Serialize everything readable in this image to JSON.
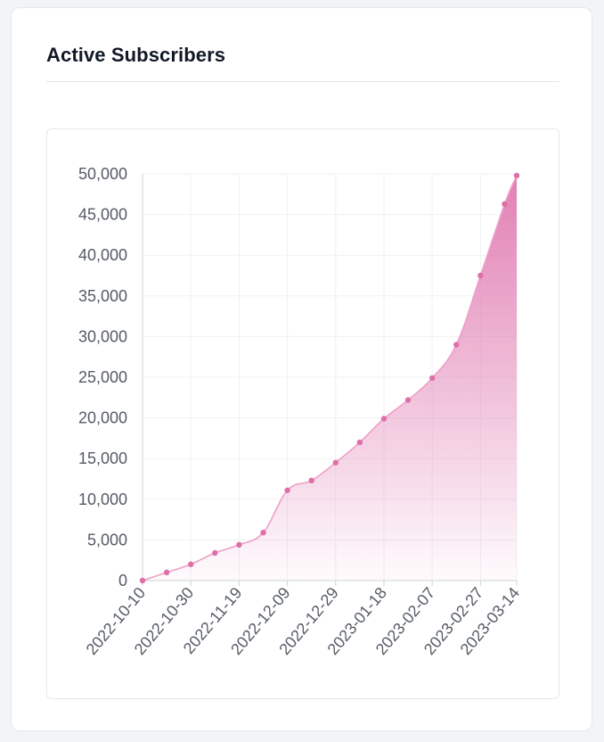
{
  "card": {
    "title": "Active Subscribers"
  },
  "colors": {
    "accent": "#e07ab0",
    "point": "#de6fa9",
    "line": "#eea0c8",
    "grid": "#f0f1f3",
    "axis": "#cfd3d8"
  },
  "chart_data": {
    "type": "area",
    "title": "",
    "xlabel": "",
    "ylabel": "",
    "ylim": [
      0,
      50000
    ],
    "yticks": [
      0,
      5000,
      10000,
      15000,
      20000,
      25000,
      30000,
      35000,
      40000,
      45000,
      50000
    ],
    "ytick_labels": [
      "0",
      "5,000",
      "10,000",
      "15,000",
      "20,000",
      "25,000",
      "30,000",
      "35,000",
      "40,000",
      "45,000",
      "50,000"
    ],
    "xticks": [
      "2022-10-10",
      "2022-10-30",
      "2022-11-19",
      "2022-12-09",
      "2022-12-29",
      "2023-01-18",
      "2023-02-07",
      "2023-02-27",
      "2023-03-14"
    ],
    "grid": true,
    "legend": "none",
    "series": [
      {
        "x": [
          "2022-10-10",
          "2022-10-20",
          "2022-10-30",
          "2022-11-09",
          "2022-11-19",
          "2022-11-29",
          "2022-12-09",
          "2022-12-19",
          "2022-12-29",
          "2023-01-08",
          "2023-01-18",
          "2023-01-28",
          "2023-02-07",
          "2023-02-17",
          "2023-02-27",
          "2023-03-09",
          "2023-03-14"
        ],
        "values": [
          0,
          1000,
          2000,
          3400,
          4400,
          5900,
          11100,
          12300,
          14500,
          17000,
          19900,
          22200,
          24900,
          29000,
          37500,
          46300,
          49800
        ]
      }
    ]
  }
}
